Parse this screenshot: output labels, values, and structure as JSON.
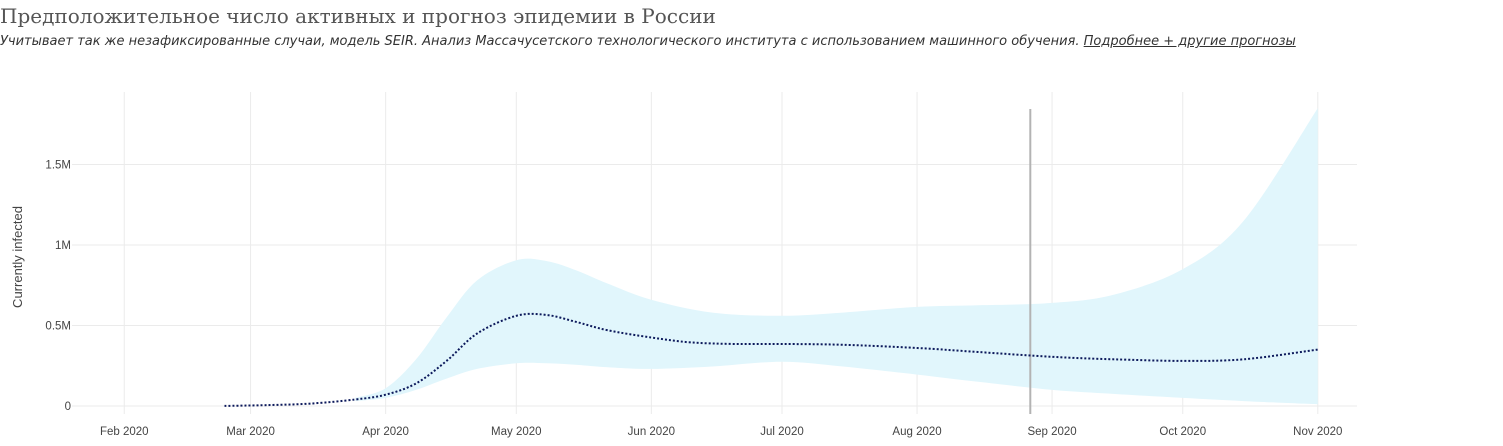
{
  "header": {
    "title": "Предположительное число активных и прогноз эпидемии в России",
    "subtitle": "Учитывает так же незафиксированные случаи, модель SEIR. Анализ Массачусетского технологического института с использованием машинного обучения.",
    "link_label": "Подробнее + другие прогнозы"
  },
  "colors": {
    "band": "#e1f6fc",
    "line": "#0d1a5c",
    "grid": "#ebebeb",
    "marker": "#b3b3b3"
  },
  "chart_data": {
    "type": "line",
    "ylabel": "Currently infected",
    "x_range": [
      "2020-01-20",
      "2020-11-10"
    ],
    "ylim": [
      -50000,
      1950000
    ],
    "x_ticks": [
      {
        "date": "2020-02-01",
        "label": "Feb 2020"
      },
      {
        "date": "2020-03-01",
        "label": "Mar 2020"
      },
      {
        "date": "2020-04-01",
        "label": "Apr 2020"
      },
      {
        "date": "2020-05-01",
        "label": "May 2020"
      },
      {
        "date": "2020-06-01",
        "label": "Jun 2020"
      },
      {
        "date": "2020-07-01",
        "label": "Jul 2020"
      },
      {
        "date": "2020-08-01",
        "label": "Aug 2020"
      },
      {
        "date": "2020-09-01",
        "label": "Sep 2020"
      },
      {
        "date": "2020-10-01",
        "label": "Oct 2020"
      },
      {
        "date": "2020-11-01",
        "label": "Nov 2020"
      }
    ],
    "y_ticks": [
      {
        "value": 0,
        "label": "0"
      },
      {
        "value": 500000,
        "label": "0.5M"
      },
      {
        "value": 1000000,
        "label": "1M"
      },
      {
        "value": 1500000,
        "label": "1.5M"
      }
    ],
    "vertical_marker": "2020-08-27",
    "series": [
      {
        "style": "dotted",
        "x": [
          "2020-02-24",
          "2020-03-05",
          "2020-03-15",
          "2020-03-25",
          "2020-04-01",
          "2020-04-08",
          "2020-04-15",
          "2020-04-22",
          "2020-05-01",
          "2020-05-08",
          "2020-05-15",
          "2020-05-22",
          "2020-06-01",
          "2020-06-10",
          "2020-06-20",
          "2020-07-01",
          "2020-07-15",
          "2020-08-01",
          "2020-08-15",
          "2020-09-01",
          "2020-09-15",
          "2020-10-01",
          "2020-10-15",
          "2020-11-01"
        ],
        "values": [
          0,
          5000,
          15000,
          40000,
          70000,
          140000,
          280000,
          450000,
          560000,
          565000,
          520000,
          470000,
          425000,
          395000,
          385000,
          385000,
          380000,
          360000,
          335000,
          305000,
          290000,
          280000,
          290000,
          350000
        ]
      }
    ],
    "band": {
      "x": [
        "2020-03-25",
        "2020-04-01",
        "2020-04-08",
        "2020-04-15",
        "2020-04-22",
        "2020-05-01",
        "2020-05-08",
        "2020-05-15",
        "2020-05-22",
        "2020-06-01",
        "2020-06-15",
        "2020-07-01",
        "2020-07-15",
        "2020-08-01",
        "2020-08-15",
        "2020-09-01",
        "2020-09-15",
        "2020-10-01",
        "2020-10-15",
        "2020-11-01"
      ],
      "upper": [
        50000,
        110000,
        290000,
        550000,
        780000,
        905000,
        900000,
        840000,
        760000,
        660000,
        580000,
        560000,
        580000,
        615000,
        625000,
        640000,
        690000,
        850000,
        1150000,
        1850000
      ],
      "lower": [
        30000,
        50000,
        100000,
        170000,
        230000,
        265000,
        265000,
        255000,
        240000,
        230000,
        245000,
        275000,
        245000,
        195000,
        150000,
        100000,
        75000,
        50000,
        30000,
        10000
      ]
    }
  }
}
